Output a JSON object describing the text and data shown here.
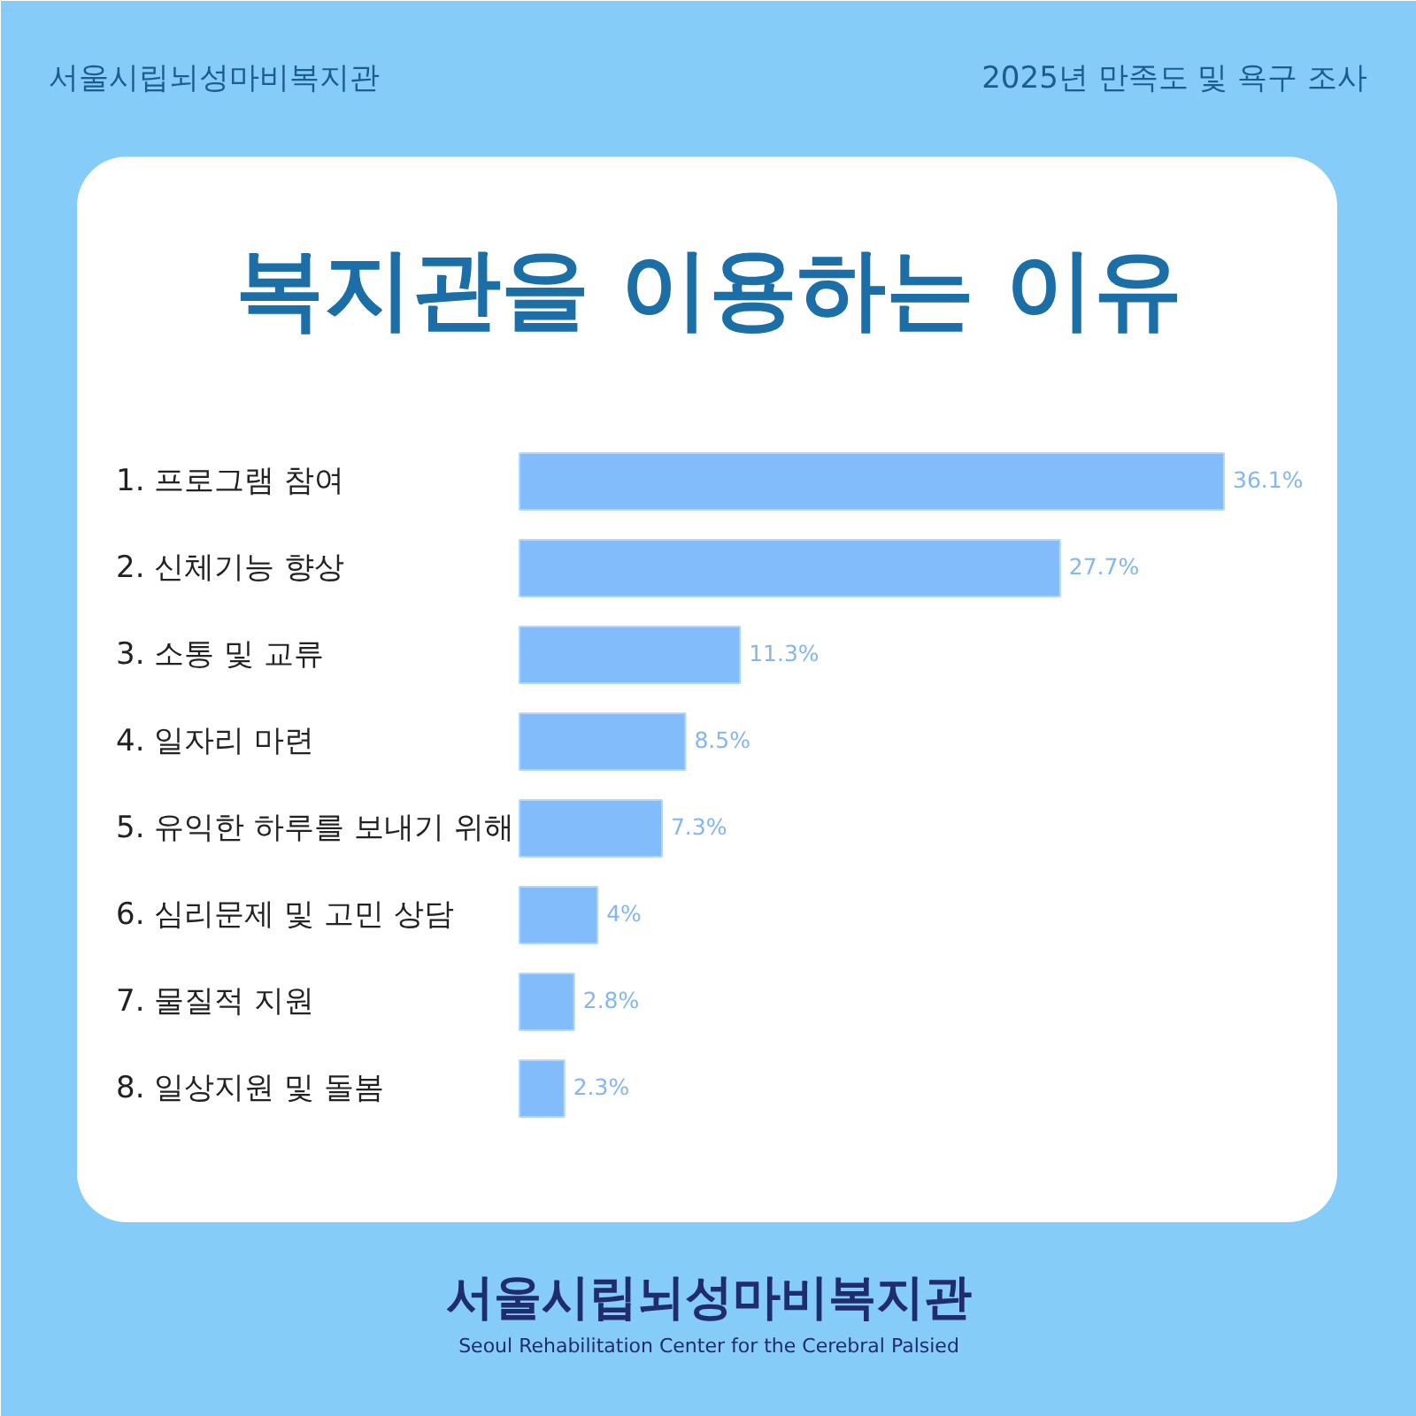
{
  "chart_data": {
    "type": "bar",
    "orientation": "horizontal",
    "title": "복지관을 이용하는 이유",
    "subtitle": "2025년 만족도 및 욕구 조사",
    "annotations": [
      "서울시립뇌성마비복지관",
      "서울시립뇌성마비복지관",
      "Seoul Rehabilitation Center for the Cerebral Palsied"
    ],
    "categories": [
      "1. 프로그램 참여",
      "2. 신체기능 향상",
      "3. 소통 및 교류",
      "4. 일자리 마련",
      "5. 유익한 하루를 보내기 위해",
      "6. 심리문제 및 고민 상담",
      "7. 물질적 지원",
      "8. 일상지원 및 돌봄"
    ],
    "values": [
      36.1,
      27.7,
      11.3,
      8.5,
      7.3,
      4,
      2.8,
      2.3
    ],
    "value_labels": [
      "36.1%",
      "27.7%",
      "11.3%",
      "8.5%",
      "7.3%",
      "4%",
      "2.8%",
      "2.3%"
    ],
    "color": "#83bcfa"
  }
}
